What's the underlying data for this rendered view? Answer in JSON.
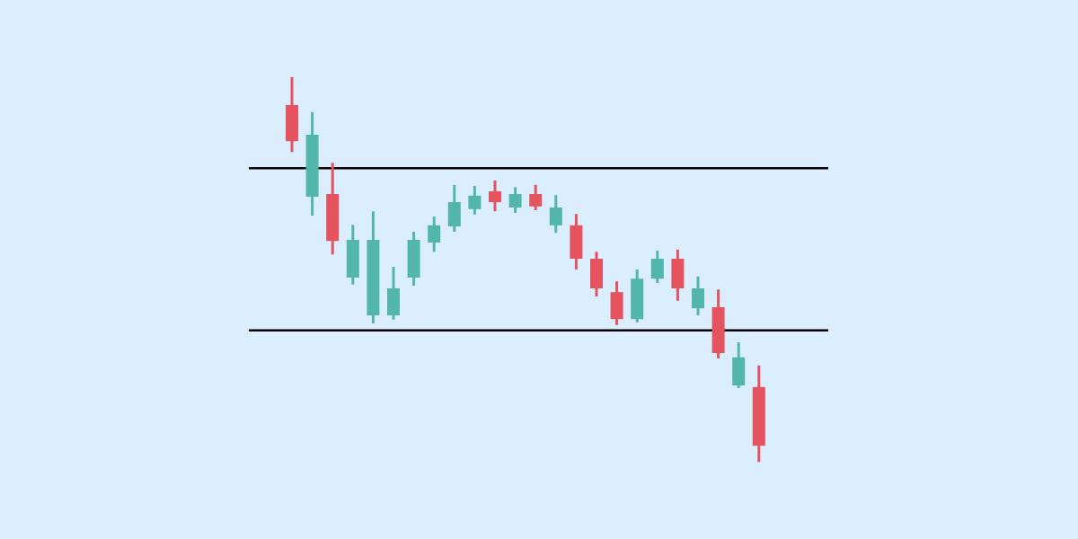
{
  "colors": {
    "background": "#dbeeff",
    "up": "#52b6ad",
    "down": "#e5535f",
    "level_line": "#000000"
  },
  "chart_data": {
    "type": "candlestick",
    "title": "",
    "xlabel": "",
    "ylabel": "",
    "axes_visible": false,
    "grid": false,
    "ylim": [
      0,
      100
    ],
    "x_range": [
      0.5,
      29
    ],
    "levels": [
      {
        "type": "resistance",
        "value": 68.8
      },
      {
        "type": "support",
        "value": 38.7
      }
    ],
    "candles": [
      {
        "x": 1,
        "open": 80.5,
        "high": 85.7,
        "low": 71.8,
        "close": 73.8
      },
      {
        "x": 2,
        "open": 63.5,
        "high": 79.2,
        "low": 60.0,
        "close": 75.0
      },
      {
        "x": 3,
        "open": 64.0,
        "high": 69.8,
        "low": 52.8,
        "close": 55.3
      },
      {
        "x": 4,
        "open": 48.5,
        "high": 58.3,
        "low": 47.2,
        "close": 55.5
      },
      {
        "x": 5,
        "open": 41.5,
        "high": 60.8,
        "low": 40.0,
        "close": 55.5
      },
      {
        "x": 6,
        "open": 41.5,
        "high": 50.5,
        "low": 40.7,
        "close": 46.5
      },
      {
        "x": 7,
        "open": 48.5,
        "high": 57.0,
        "low": 47.0,
        "close": 55.5
      },
      {
        "x": 8,
        "open": 55.0,
        "high": 59.8,
        "low": 53.3,
        "close": 58.2
      },
      {
        "x": 9,
        "open": 58.0,
        "high": 65.7,
        "low": 57.0,
        "close": 62.5
      },
      {
        "x": 10,
        "open": 61.2,
        "high": 65.5,
        "low": 60.2,
        "close": 63.7
      },
      {
        "x": 11,
        "open": 64.5,
        "high": 66.5,
        "low": 60.8,
        "close": 62.5
      },
      {
        "x": 12,
        "open": 61.5,
        "high": 65.3,
        "low": 60.5,
        "close": 64.0
      },
      {
        "x": 13,
        "open": 64.0,
        "high": 65.7,
        "low": 61.0,
        "close": 61.7
      },
      {
        "x": 14,
        "open": 58.2,
        "high": 63.8,
        "low": 56.8,
        "close": 61.5
      },
      {
        "x": 15,
        "open": 58.2,
        "high": 60.3,
        "low": 50.0,
        "close": 52.0
      },
      {
        "x": 16,
        "open": 52.0,
        "high": 53.3,
        "low": 45.0,
        "close": 46.5
      },
      {
        "x": 17,
        "open": 45.8,
        "high": 47.8,
        "low": 39.7,
        "close": 40.8
      },
      {
        "x": 18,
        "open": 40.8,
        "high": 50.0,
        "low": 40.2,
        "close": 48.3
      },
      {
        "x": 19,
        "open": 48.3,
        "high": 53.5,
        "low": 47.5,
        "close": 52.0
      },
      {
        "x": 20,
        "open": 52.0,
        "high": 53.7,
        "low": 44.2,
        "close": 46.5
      },
      {
        "x": 21,
        "open": 42.8,
        "high": 48.7,
        "low": 41.5,
        "close": 46.5
      },
      {
        "x": 22,
        "open": 43.0,
        "high": 46.3,
        "low": 33.5,
        "close": 34.5
      },
      {
        "x": 23,
        "open": 28.5,
        "high": 36.5,
        "low": 28.0,
        "close": 33.7
      },
      {
        "x": 24,
        "open": 28.2,
        "high": 32.2,
        "low": 14.3,
        "close": 17.3
      }
    ]
  }
}
